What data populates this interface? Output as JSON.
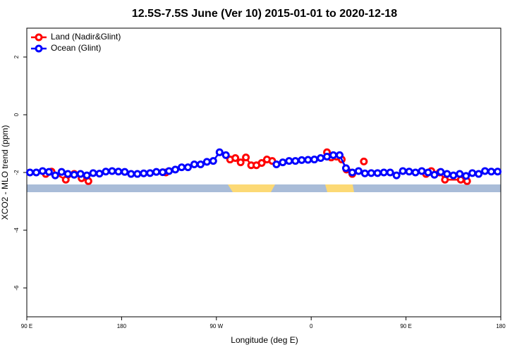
{
  "chart_data": {
    "type": "line",
    "title": "12.5S-7.5S June (Ver 10)   2015-01-01 to 2020-12-18",
    "x_label": "Longitude (deg E)",
    "y_label": "XCO2 - MLO trend (ppm)",
    "xlim": [
      90,
      540
    ],
    "xticks": [
      {
        "value": 90,
        "label": "90 E"
      },
      {
        "value": 180,
        "label": "180"
      },
      {
        "value": 270,
        "label": "90 W"
      },
      {
        "value": 360,
        "label": "0"
      },
      {
        "value": 450,
        "label": "90 E"
      },
      {
        "value": 540,
        "label": "180"
      }
    ],
    "ylim": [
      -7,
      3
    ],
    "yticks": [
      -6,
      -4,
      -2,
      0,
      2
    ],
    "legend": "top-left",
    "series": [
      {
        "name": "Land (Nadir&Glint)",
        "color": "#ff0000",
        "x": [
          108,
          113.5,
          127,
          135,
          142,
          148.5,
          185,
          222,
          250,
          283,
          288,
          293,
          298,
          303,
          308,
          313,
          318,
          323,
          350,
          375,
          379,
          384,
          389,
          393.5,
          399,
          405,
          410,
          440,
          469,
          474,
          482,
          487,
          502,
          508
        ],
        "values": [
          -2.05,
          -1.97,
          -2.25,
          -2.05,
          -2.2,
          -2.3,
          null,
          -2.0,
          null,
          -1.55,
          -1.5,
          -1.65,
          -1.48,
          -1.75,
          -1.75,
          -1.67,
          -1.55,
          -1.6,
          null,
          -1.3,
          -1.48,
          -1.45,
          -1.55,
          -1.9,
          -2.05,
          null,
          -1.62,
          null,
          -2.05,
          -1.95,
          -2.0,
          -2.25,
          -2.25,
          -2.3
        ]
      },
      {
        "name": "Ocean (Glint)",
        "color": "#0000ff",
        "x": [
          93,
          99,
          105,
          111,
          117,
          123,
          129,
          135,
          141,
          147,
          153,
          159,
          165,
          171,
          177,
          183,
          189,
          195,
          201,
          207,
          213,
          219,
          225,
          231,
          237,
          243,
          249,
          255,
          261,
          267,
          273,
          279,
          285,
          291,
          297,
          303,
          309,
          315,
          321,
          327,
          333,
          339,
          345,
          351,
          357,
          363,
          369,
          375,
          381,
          387,
          393,
          399,
          405,
          411,
          417,
          423,
          429,
          435,
          441,
          447,
          453,
          459,
          465,
          471,
          477,
          483,
          489,
          495,
          501,
          507,
          513,
          519,
          525,
          531,
          537
        ],
        "values": [
          -2.0,
          -2.0,
          -1.95,
          -1.98,
          -2.1,
          -1.98,
          -2.05,
          -2.08,
          -2.05,
          -2.1,
          -2.02,
          -2.04,
          -1.97,
          -1.95,
          -1.97,
          -1.98,
          -2.05,
          -2.05,
          -2.03,
          -2.02,
          -1.98,
          -1.99,
          -1.95,
          -1.9,
          -1.82,
          -1.82,
          -1.72,
          -1.72,
          -1.63,
          -1.6,
          -1.3,
          -1.4,
          null,
          null,
          null,
          null,
          null,
          null,
          null,
          -1.72,
          -1.65,
          -1.6,
          -1.6,
          -1.57,
          -1.56,
          -1.55,
          -1.5,
          -1.45,
          -1.4,
          -1.4,
          -1.85,
          -2.0,
          -1.95,
          -2.03,
          -2.02,
          -2.02,
          -2.0,
          -2.0,
          -2.1,
          -1.95,
          -1.97,
          -2.0,
          -1.95,
          -2.0,
          -2.08,
          -1.98,
          -2.05,
          -2.1,
          -2.05,
          -2.12,
          -2.02,
          -2.05,
          -1.95,
          -1.97,
          -1.97
        ]
      }
    ]
  }
}
